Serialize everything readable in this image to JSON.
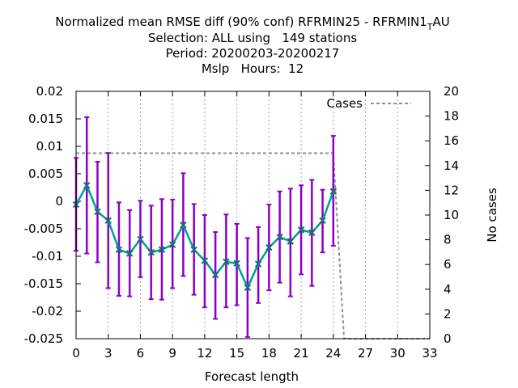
{
  "title": {
    "line1_main": "Normalized mean RMSE diff (90% conf) RFRMIN25 - RFRMIN1",
    "line1_sub": "T",
    "line1_end": "AU",
    "line2": "Selection: ALL using   149 stations",
    "line3": "Period: 20200203-20200217",
    "line4": "Mslp   Hours:  12"
  },
  "chart_data": {
    "type": "line",
    "xlabel": "Forecast length",
    "ylabel_right": "No cases",
    "xlim": [
      0,
      33
    ],
    "ylim": [
      -0.025,
      0.02
    ],
    "y2lim": [
      0,
      20
    ],
    "x_ticks": [
      "0",
      "3",
      "6",
      "9",
      "12",
      "15",
      "18",
      "21",
      "24",
      "27",
      "30",
      "33"
    ],
    "y_ticks": [
      "0.02",
      "0.015",
      "0.01",
      "0.005",
      "0",
      "-0.005",
      "-0.01",
      "-0.015",
      "-0.02",
      "-0.025"
    ],
    "y2_ticks": [
      "20",
      "18",
      "16",
      "14",
      "12",
      "10",
      "8",
      "6",
      "4",
      "2",
      "0"
    ],
    "grid": "vertical dashed at x ticks",
    "legend": {
      "placement": "top-right",
      "entries": [
        "Cases"
      ]
    },
    "colors": {
      "line": "#009E9E",
      "errorbar": "#8B00C8",
      "cases": "#909090",
      "marker": "#1a6b6b"
    },
    "series": [
      {
        "x": [
          0,
          1,
          2,
          3,
          4,
          5,
          6,
          7,
          8,
          9,
          10,
          11,
          12,
          13,
          14,
          15,
          16,
          17,
          18,
          19,
          20,
          21,
          22,
          23,
          24
        ],
        "values": [
          -0.0006,
          0.0029,
          -0.0019,
          -0.0035,
          -0.0088,
          -0.0095,
          -0.0069,
          -0.0093,
          -0.0088,
          -0.0079,
          -0.0043,
          -0.0088,
          -0.0108,
          -0.0134,
          -0.011,
          -0.0113,
          -0.0157,
          -0.0114,
          -0.0084,
          -0.0065,
          -0.0073,
          -0.0052,
          -0.0057,
          -0.0035,
          0.0018
        ],
        "err_low": [
          -0.009,
          -0.0095,
          -0.0111,
          -0.0158,
          -0.0172,
          -0.0173,
          -0.0138,
          -0.0178,
          -0.0179,
          -0.0158,
          -0.0136,
          -0.017,
          -0.0193,
          -0.0214,
          -0.0193,
          -0.0189,
          -0.0247,
          -0.0185,
          -0.0162,
          -0.0148,
          -0.0173,
          -0.0133,
          -0.0154,
          -0.0093,
          -0.0081
        ],
        "err_high": [
          0.0079,
          0.0153,
          0.0072,
          0.0088,
          -0.0002,
          -0.0016,
          0.0001,
          -0.0008,
          0.0004,
          0.0003,
          0.0051,
          -0.0005,
          -0.0025,
          -0.0056,
          -0.0024,
          -0.0041,
          -0.0067,
          -0.0047,
          -0.0006,
          0.0018,
          0.0023,
          0.0029,
          0.0039,
          0.0021,
          0.0119
        ]
      },
      {
        "name": "Cases",
        "axis": "right",
        "x": [
          0,
          24,
          25,
          33
        ],
        "values": [
          15,
          15,
          0,
          0
        ]
      }
    ]
  }
}
